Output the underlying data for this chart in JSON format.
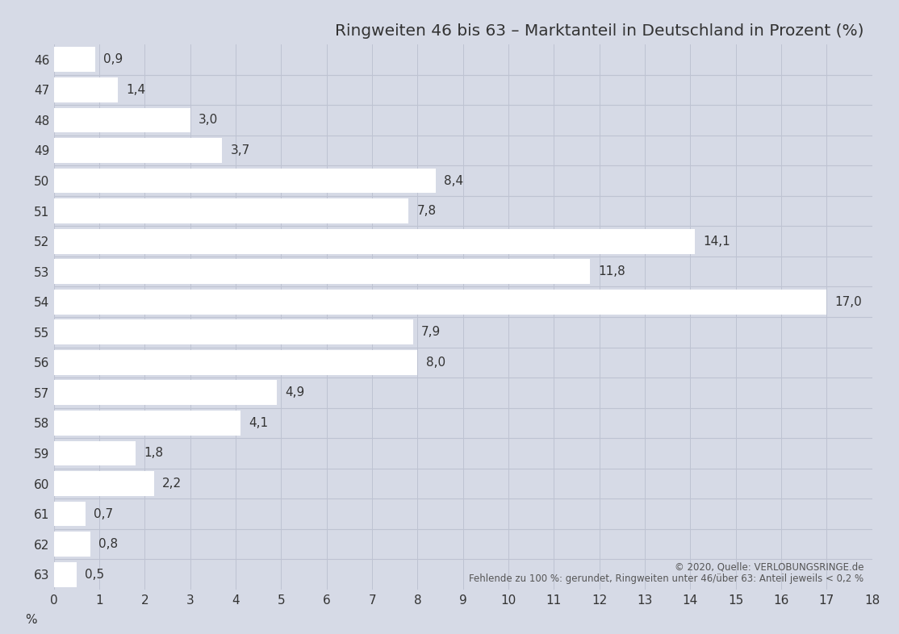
{
  "title": "Ringweiten 46 bis 63 – Marktanteil in Deutschland in Prozent (%)",
  "categories": [
    46,
    47,
    48,
    49,
    50,
    51,
    52,
    53,
    54,
    55,
    56,
    57,
    58,
    59,
    60,
    61,
    62,
    63
  ],
  "values": [
    0.9,
    1.4,
    3.0,
    3.7,
    8.4,
    7.8,
    14.1,
    11.8,
    17.0,
    7.9,
    8.0,
    4.9,
    4.1,
    1.8,
    2.2,
    0.7,
    0.8,
    0.5
  ],
  "bar_color": "#ffffff",
  "background_color": "#d6dae6",
  "plot_bg_color": "#d6dae6",
  "row_separator_color": "#bec3d2",
  "xlim": [
    0,
    18
  ],
  "xticks": [
    0,
    1,
    2,
    3,
    4,
    5,
    6,
    7,
    8,
    9,
    10,
    11,
    12,
    13,
    14,
    15,
    16,
    17,
    18
  ],
  "value_labels": [
    "0,9",
    "1,4",
    "3,0",
    "3,7",
    "8,4",
    "7,8",
    "14,1",
    "11,8",
    "17,0",
    "7,9",
    "8,0",
    "4,9",
    "4,1",
    "1,8",
    "2,2",
    "0,7",
    "0,8",
    "0,5"
  ],
  "title_fontsize": 14.5,
  "label_fontsize": 11,
  "tick_fontsize": 11,
  "source_text": "© 2020, Quelle: VERLOBUNGSRINGE.de\nFehlende zu 100 %: gerundet, Ringweiten unter 46/über 63: Anteil jeweils < 0,2 %"
}
